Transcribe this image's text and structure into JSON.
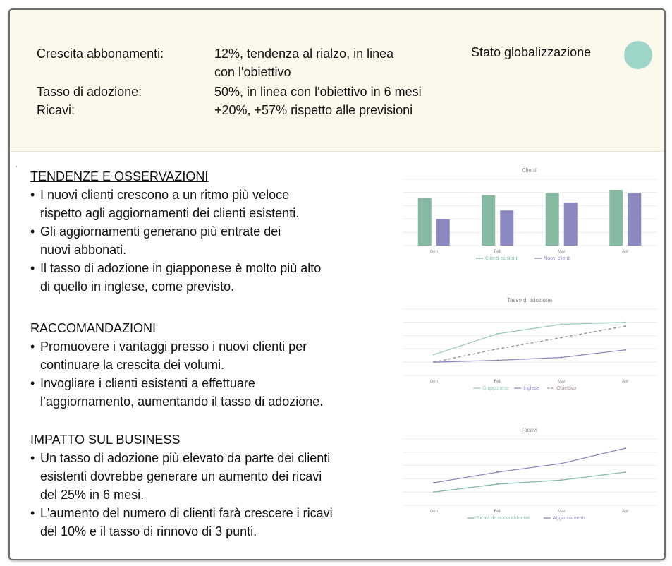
{
  "summary": {
    "rows": [
      {
        "label": "Crescita abbonamenti:",
        "value_line1": "12%, tendenza al rialzo, in linea",
        "value_line2": "con l'obiettivo"
      },
      {
        "label": "Tasso di adozione:",
        "value_line1": "50%, in linea con l'obiettivo in 6 mesi",
        "value_line2": ""
      },
      {
        "label": "Ricavi:",
        "value_line1": "+20%, +57% rispetto alle previsioni",
        "value_line2": ""
      }
    ],
    "status_label": "Stato globalizzazione",
    "status_color": "#9dd5c9"
  },
  "sections": {
    "trends": {
      "title": "TENDENZE E OSSERVAZIONI",
      "items": [
        [
          "I nuovi clienti crescono a un ritmo più veloce",
          "rispetto agli aggiornamenti dei clienti esistenti."
        ],
        [
          "Gli aggiornamenti generano più entrate dei",
          "nuovi abbonati."
        ],
        [
          "Il tasso di adozione in giapponese è molto più alto",
          "di quello in inglese, come previsto."
        ]
      ]
    },
    "recommendations": {
      "title": "RACCOMANDAZIONI",
      "items": [
        [
          "Promuovere i vantaggi presso i nuovi clienti per",
          "continuare la crescita dei volumi."
        ],
        [
          "Invogliare i clienti esistenti a effettuare",
          "l’aggiornamento, aumentando il tasso di adozione."
        ]
      ]
    },
    "impact": {
      "title": "IMPATTO SUL BUSINESS",
      "items": [
        [
          "Un tasso di adozione più elevato da parte dei clienti",
          "esistenti dovrebbe generare un aumento dei ricavi",
          "del 25% in 6 mesi."
        ],
        [
          "L'aumento del numero di clienti farà crescere i ricavi",
          "del 10% e il tasso di rinnovo di 3 punti."
        ]
      ]
    }
  },
  "chart_data": [
    {
      "type": "bar",
      "title": "Clienti",
      "categories": [
        "Gen",
        "Feb",
        "Mar",
        "Apr"
      ],
      "series": [
        {
          "name": "Clienti esistenti",
          "color": "#86b9a1",
          "values": [
            72,
            76,
            79,
            84
          ]
        },
        {
          "name": "Nuovi clienti",
          "color": "#8c89c0",
          "values": [
            40,
            53,
            65,
            79
          ]
        }
      ],
      "ylim": [
        0,
        100
      ],
      "grid": true,
      "legend": "bottom"
    },
    {
      "type": "line",
      "title": "Tasso di adozione",
      "categories": [
        "Gen",
        "Feb",
        "Mar",
        "Apr"
      ],
      "series": [
        {
          "name": "Giapponese",
          "color": "#9fcab8",
          "style": "solid",
          "values": [
            22,
            44,
            54,
            56
          ]
        },
        {
          "name": "Inglese",
          "color": "#8c89c0",
          "style": "solid",
          "values": [
            14,
            16,
            19,
            27
          ]
        },
        {
          "name": "Obiettivo",
          "color": "#9a8b8b",
          "style": "dashed",
          "values": [
            14,
            28,
            40,
            52
          ]
        }
      ],
      "ylim": [
        0,
        70
      ],
      "grid": true,
      "legend": "bottom"
    },
    {
      "type": "line",
      "title": "Ricavi",
      "categories": [
        "Gen",
        "Feb",
        "Mar",
        "Apr"
      ],
      "series": [
        {
          "name": "Ricavi da nuovi abbonati",
          "color": "#86b9a1",
          "style": "solid",
          "values": [
            20,
            32,
            38,
            50
          ]
        },
        {
          "name": "Aggiornamenti",
          "color": "#8c89c0",
          "style": "solid",
          "values": [
            34,
            50,
            63,
            86
          ]
        }
      ],
      "ylim": [
        0,
        100
      ],
      "grid": true,
      "legend": "bottom"
    }
  ]
}
